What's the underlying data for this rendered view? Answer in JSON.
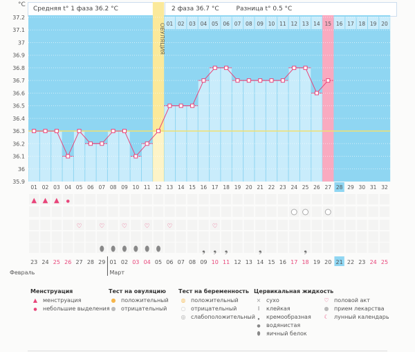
{
  "header": {
    "unit": "°C",
    "phase1": "Средняя t° 1 фаза 36.2 °C",
    "phase2": "2 фаза 36.7 °C",
    "diff": "Разница t° 0.5 °C",
    "ovulation": "ОВУЛЯЦИЯ"
  },
  "chart_data": {
    "type": "line",
    "title": "",
    "ylabel": "°C",
    "ylim": [
      35.9,
      37.2
    ],
    "yticks": [
      "37.2",
      "37.1",
      "37",
      "36.9",
      "36.8",
      "36.7",
      "36.6",
      "36.5",
      "36.4",
      "36.3",
      "36.2",
      "36.1",
      "36",
      "35.9"
    ],
    "ytick_values": [
      37.2,
      37.1,
      37.0,
      36.9,
      36.8,
      36.7,
      36.6,
      36.5,
      36.4,
      36.3,
      36.2,
      36.1,
      36.0,
      35.9
    ],
    "cycle_days": [
      "01",
      "02",
      "03",
      "04",
      "05",
      "06",
      "07",
      "08",
      "09",
      "10",
      "11",
      "12",
      "13",
      "14",
      "15",
      "16",
      "17",
      "18",
      "19",
      "20",
      "21",
      "22",
      "23",
      "24",
      "25",
      "26",
      "27",
      "28",
      "29",
      "30",
      "31",
      "32"
    ],
    "post_ovulation_days": [
      "01",
      "02",
      "03",
      "04",
      "05",
      "06",
      "07",
      "08",
      "09",
      "10",
      "11",
      "12",
      "13",
      "14",
      "15",
      "16",
      "17",
      "18",
      "19",
      "20"
    ],
    "temperatures": [
      36.3,
      36.3,
      36.3,
      36.1,
      36.3,
      36.2,
      36.2,
      36.3,
      36.3,
      36.1,
      36.2,
      36.3,
      36.5,
      36.5,
      36.5,
      36.7,
      36.8,
      36.8,
      36.7,
      36.7,
      36.7,
      36.7,
      36.7,
      36.8,
      36.8,
      36.6,
      36.7
    ],
    "coverline": 36.3,
    "ovulation_day": 12,
    "highlight_day": 27,
    "current_day": 28
  },
  "rows": {
    "menstruation": {
      "1": "big",
      "2": "big",
      "3": "big",
      "4": "small"
    },
    "pregnancy_test": {
      "24": "negative",
      "25": "negative",
      "27": "negative"
    },
    "intercourse": [
      5,
      7,
      9,
      11,
      13,
      17
    ],
    "fluid": {
      "7": "egg",
      "8": "egg",
      "9": "egg",
      "10": "egg",
      "11": "egg",
      "12": "egg",
      "16": "creamy",
      "17": "creamy",
      "18": "creamy",
      "21": "creamy",
      "25": "creamy"
    }
  },
  "dates": [
    "23",
    "24",
    "25",
    "26",
    "27",
    "28",
    "29",
    "01",
    "02",
    "03",
    "04",
    "05",
    "06",
    "07",
    "08",
    "09",
    "10",
    "11",
    "12",
    "13",
    "14",
    "15",
    "16",
    "17",
    "18",
    "19",
    "20",
    "21",
    "22",
    "23",
    "24",
    "25"
  ],
  "weekend_cols": [
    3,
    4,
    10,
    11,
    17,
    18,
    24,
    25,
    31,
    32
  ],
  "months": {
    "feb": "Февраль",
    "mar": "Март"
  },
  "legend": {
    "menstruation": {
      "title": "Менструация",
      "items": [
        "менструация",
        "небольшие выделения"
      ]
    },
    "ovulation_test": {
      "title": "Тест на овуляцию",
      "items": [
        "положительный",
        "отрицательный"
      ]
    },
    "pregnancy_test": {
      "title": "Тест на беременность",
      "items": [
        "положительный",
        "отрицательный",
        "слабоположительный"
      ]
    },
    "cervical": {
      "title": "Цервикальная жидкость",
      "items": [
        "сухо",
        "клейкая",
        "кремообразная",
        "водянистая",
        "яичный белок"
      ]
    },
    "other": {
      "items": [
        "половой акт",
        "прием лекарства",
        "лунный календарь"
      ]
    }
  },
  "colors": {
    "sky": "#8fd6f2",
    "bar": "#c9ecfb",
    "line": "#e8457a",
    "ovulation": "#fbe99a",
    "highlight": "#f9aac0",
    "coverline": "#f0e070"
  }
}
